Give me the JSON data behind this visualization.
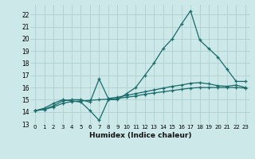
{
  "xlabel": "Humidex (Indice chaleur)",
  "bg_color": "#cce8e8",
  "line_color": "#1a6b6b",
  "grid_color": "#aacccc",
  "xlim": [
    -0.5,
    23.5
  ],
  "ylim": [
    13,
    22.8
  ],
  "yticks": [
    13,
    14,
    15,
    16,
    17,
    18,
    19,
    20,
    21,
    22
  ],
  "xticks": [
    0,
    1,
    2,
    3,
    4,
    5,
    6,
    7,
    8,
    9,
    10,
    11,
    12,
    13,
    14,
    15,
    16,
    17,
    18,
    19,
    20,
    21,
    22,
    23
  ],
  "line1_x": [
    0,
    1,
    2,
    3,
    4,
    5,
    6,
    7,
    8,
    9,
    10,
    11,
    12,
    13,
    14,
    15,
    16,
    17,
    18,
    19,
    20,
    21,
    22,
    23
  ],
  "line1_y": [
    14.1,
    14.3,
    14.7,
    15.0,
    14.9,
    14.8,
    14.1,
    13.3,
    15.0,
    15.0,
    15.5,
    16.0,
    17.0,
    18.0,
    19.2,
    20.0,
    21.2,
    22.3,
    19.9,
    19.2,
    18.5,
    17.5,
    16.5,
    16.5
  ],
  "line2_x": [
    0,
    1,
    2,
    3,
    4,
    5,
    6,
    7,
    8,
    9,
    10,
    11,
    12,
    13,
    14,
    15,
    16,
    17,
    18,
    19,
    20,
    21,
    22,
    23
  ],
  "line2_y": [
    14.1,
    14.2,
    14.5,
    14.9,
    15.0,
    15.0,
    14.8,
    16.7,
    15.1,
    15.2,
    15.35,
    15.5,
    15.65,
    15.8,
    15.95,
    16.1,
    16.2,
    16.35,
    16.4,
    16.3,
    16.15,
    16.1,
    16.2,
    16.0
  ],
  "line3_x": [
    0,
    1,
    2,
    3,
    4,
    5,
    6,
    7,
    8,
    9,
    10,
    11,
    12,
    13,
    14,
    15,
    16,
    17,
    18,
    19,
    20,
    21,
    22,
    23
  ],
  "line3_y": [
    14.1,
    14.2,
    14.4,
    14.7,
    14.85,
    14.9,
    14.95,
    15.0,
    15.05,
    15.1,
    15.2,
    15.3,
    15.45,
    15.55,
    15.65,
    15.75,
    15.85,
    15.95,
    16.0,
    16.0,
    16.0,
    16.0,
    16.0,
    15.95
  ]
}
